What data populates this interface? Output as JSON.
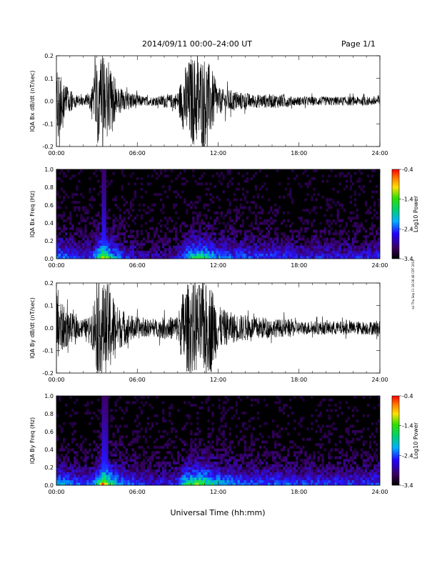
{
  "header": {
    "date_range": "2014/09/11   00:00–24:00 UT",
    "page": "Page 1/1"
  },
  "footer": {
    "xlabel": "Universal Time (hh:mm)",
    "side_stamp": "ssi Thu Sep 11 18:26:48 CDT 2014"
  },
  "chart_data": [
    {
      "type": "line",
      "ylabel": "IQA Bx dB/dt (nT/sec)",
      "xlim": [
        0,
        24
      ],
      "ylim": [
        -0.2,
        0.2
      ],
      "x_tick_labels": [
        "00:00",
        "06:00",
        "12:00",
        "18:00",
        "24:00"
      ],
      "x_tick_hours": [
        0,
        6,
        12,
        18,
        24
      ],
      "y_tick_labels": [
        "0.2",
        "0.1",
        "0.0",
        "-0.1",
        "-0.2"
      ],
      "y_tick_values": [
        0.2,
        0.1,
        0.0,
        -0.1,
        -0.2
      ],
      "series": [
        {
          "x": [
            0,
            0.5,
            1,
            1.5,
            2,
            2.5,
            3,
            3.5,
            4,
            4.5,
            5,
            5.5,
            6,
            6.5,
            7,
            7.5,
            8,
            8.5,
            9,
            9.5,
            10,
            10.5,
            11,
            11.5,
            12,
            12.5,
            13,
            13.5,
            14,
            14.5,
            15,
            15.5,
            16,
            16.5,
            17,
            17.5,
            18,
            18.5,
            19,
            19.5,
            20,
            20.5,
            21,
            21.5,
            22,
            22.5,
            23,
            23.5,
            24
          ],
          "y_envelope": [
            0.2,
            0.08,
            0.05,
            0.03,
            0.02,
            0.04,
            0.2,
            0.2,
            0.2,
            0.06,
            0.05,
            0.04,
            0.03,
            0.02,
            0.02,
            0.02,
            0.03,
            0.03,
            0.04,
            0.15,
            0.2,
            0.2,
            0.2,
            0.15,
            0.06,
            0.05,
            0.05,
            0.04,
            0.04,
            0.03,
            0.03,
            0.03,
            0.03,
            0.03,
            0.03,
            0.02,
            0.02,
            0.02,
            0.02,
            0.02,
            0.02,
            0.02,
            0.02,
            0.02,
            0.02,
            0.02,
            0.02,
            0.02,
            0.03
          ]
        }
      ]
    },
    {
      "type": "heatmap",
      "ylabel": "IQA Bx Freq (Hz)",
      "xlim": [
        0,
        24
      ],
      "ylim": [
        0,
        1.0
      ],
      "x_tick_labels": [
        "00:00",
        "06:00",
        "12:00",
        "18:00",
        "24:00"
      ],
      "x_tick_hours": [
        0,
        6,
        12,
        18,
        24
      ],
      "y_tick_labels": [
        "1.0",
        "0.8",
        "0.6",
        "0.4",
        "0.2",
        "0.0"
      ],
      "y_tick_values": [
        1.0,
        0.8,
        0.6,
        0.4,
        0.2,
        0.0
      ],
      "colorbar": {
        "label": "Log10 Power",
        "range": [
          -3.4,
          -0.4
        ],
        "tick_labels": [
          "-0.4",
          "-1.4",
          "-2.4",
          "-3.4"
        ],
        "tick_values": [
          -0.4,
          -1.4,
          -2.4,
          -3.4
        ]
      },
      "activity_hours": [
        0,
        0.5,
        1,
        1.5,
        2,
        2.5,
        3,
        3.5,
        4,
        4.5,
        5,
        5.5,
        6,
        6.5,
        7,
        7.5,
        8,
        8.5,
        9,
        9.5,
        10,
        10.5,
        11,
        11.5,
        12,
        12.5,
        13,
        13.5,
        14,
        14.5,
        15,
        15.5,
        16,
        16.5,
        17,
        17.5,
        18,
        18.5,
        19,
        19.5,
        20,
        20.5,
        21,
        21.5,
        22,
        22.5,
        23,
        23.5,
        24
      ],
      "activity_level": [
        0.5,
        0.45,
        0.4,
        0.35,
        0.3,
        0.3,
        0.55,
        0.9,
        0.6,
        0.45,
        0.35,
        0.3,
        0.25,
        0.2,
        0.2,
        0.2,
        0.2,
        0.2,
        0.25,
        0.45,
        0.6,
        0.65,
        0.6,
        0.55,
        0.45,
        0.45,
        0.4,
        0.4,
        0.4,
        0.35,
        0.35,
        0.35,
        0.35,
        0.35,
        0.35,
        0.3,
        0.3,
        0.3,
        0.3,
        0.3,
        0.3,
        0.3,
        0.3,
        0.3,
        0.3,
        0.3,
        0.3,
        0.3,
        0.35
      ]
    },
    {
      "type": "line",
      "ylabel": "IQA By dB/dt (nT/sec)",
      "xlim": [
        0,
        24
      ],
      "ylim": [
        -0.2,
        0.2
      ],
      "x_tick_labels": [
        "00:00",
        "06:00",
        "12:00",
        "18:00",
        "24:00"
      ],
      "x_tick_hours": [
        0,
        6,
        12,
        18,
        24
      ],
      "y_tick_labels": [
        "0.2",
        "0.1",
        "0.0",
        "-0.1",
        "-0.2"
      ],
      "y_tick_values": [
        0.2,
        0.1,
        0.0,
        -0.1,
        -0.2
      ],
      "series": [
        {
          "x": [
            0,
            0.5,
            1,
            1.5,
            2,
            2.5,
            3,
            3.5,
            4,
            4.5,
            5,
            5.5,
            6,
            6.5,
            7,
            7.5,
            8,
            8.5,
            9,
            9.5,
            10,
            10.5,
            11,
            11.5,
            12,
            12.5,
            13,
            13.5,
            14,
            14.5,
            15,
            15.5,
            16,
            16.5,
            17,
            17.5,
            18,
            18.5,
            19,
            19.5,
            20,
            20.5,
            21,
            21.5,
            22,
            22.5,
            23,
            23.5,
            24
          ],
          "y_envelope": [
            0.2,
            0.1,
            0.07,
            0.05,
            0.04,
            0.05,
            0.2,
            0.2,
            0.2,
            0.1,
            0.08,
            0.06,
            0.05,
            0.04,
            0.04,
            0.04,
            0.05,
            0.05,
            0.06,
            0.2,
            0.2,
            0.2,
            0.2,
            0.2,
            0.1,
            0.08,
            0.07,
            0.06,
            0.06,
            0.05,
            0.05,
            0.05,
            0.04,
            0.04,
            0.04,
            0.04,
            0.03,
            0.03,
            0.03,
            0.03,
            0.03,
            0.03,
            0.03,
            0.03,
            0.03,
            0.03,
            0.03,
            0.03,
            0.04
          ]
        }
      ]
    },
    {
      "type": "heatmap",
      "ylabel": "IQA By Freq (Hz)",
      "xlim": [
        0,
        24
      ],
      "ylim": [
        0,
        1.0
      ],
      "x_tick_labels": [
        "00:00",
        "06:00",
        "12:00",
        "18:00",
        "24:00"
      ],
      "x_tick_hours": [
        0,
        6,
        12,
        18,
        24
      ],
      "y_tick_labels": [
        "1.0",
        "0.8",
        "0.6",
        "0.4",
        "0.2",
        "0.0"
      ],
      "y_tick_values": [
        1.0,
        0.8,
        0.6,
        0.4,
        0.2,
        0.0
      ],
      "colorbar": {
        "label": "Log10 Power",
        "range": [
          -3.4,
          -0.4
        ],
        "tick_labels": [
          "-0.4",
          "-1.4",
          "-2.4",
          "-3.4"
        ],
        "tick_values": [
          -0.4,
          -1.4,
          -2.4,
          -3.4
        ]
      },
      "activity_hours": [
        0,
        0.5,
        1,
        1.5,
        2,
        2.5,
        3,
        3.5,
        4,
        4.5,
        5,
        5.5,
        6,
        6.5,
        7,
        7.5,
        8,
        8.5,
        9,
        9.5,
        10,
        10.5,
        11,
        11.5,
        12,
        12.5,
        13,
        13.5,
        14,
        14.5,
        15,
        15.5,
        16,
        16.5,
        17,
        17.5,
        18,
        18.5,
        19,
        19.5,
        20,
        20.5,
        21,
        21.5,
        22,
        22.5,
        23,
        23.5,
        24
      ],
      "activity_level": [
        0.55,
        0.5,
        0.45,
        0.4,
        0.35,
        0.35,
        0.6,
        0.95,
        0.7,
        0.55,
        0.45,
        0.4,
        0.35,
        0.3,
        0.3,
        0.3,
        0.3,
        0.3,
        0.35,
        0.6,
        0.7,
        0.75,
        0.7,
        0.65,
        0.55,
        0.5,
        0.5,
        0.45,
        0.45,
        0.4,
        0.4,
        0.4,
        0.4,
        0.4,
        0.4,
        0.35,
        0.35,
        0.35,
        0.35,
        0.35,
        0.35,
        0.35,
        0.35,
        0.35,
        0.35,
        0.35,
        0.35,
        0.35,
        0.4
      ]
    }
  ]
}
